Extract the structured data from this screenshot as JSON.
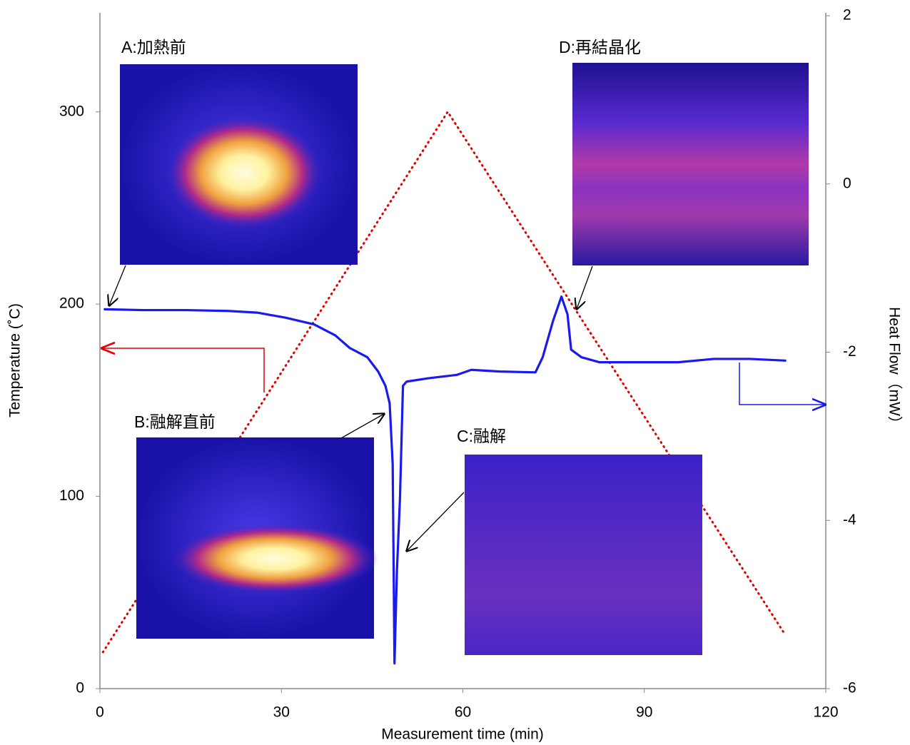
{
  "chart_data": {
    "type": "line",
    "xlabel": "Measurement time (min)",
    "ylabel": "Temperature (˚C)",
    "y2label": "Heat Flow（mW）",
    "xlim": [
      0,
      120
    ],
    "xticks": [
      0,
      30,
      60,
      90,
      120
    ],
    "ylim": [
      0,
      350
    ],
    "yticks": [
      0,
      100,
      200,
      300
    ],
    "y2lim": [
      -6,
      2
    ],
    "y2ticks": [
      -6,
      -4,
      -2,
      0,
      2
    ],
    "grid": false,
    "series": [
      {
        "color": "#e00000",
        "style": "dotted",
        "axis": "y",
        "x": [
          0.5,
          57.5,
          113.3
        ],
        "values": [
          19,
          300,
          28
        ]
      },
      {
        "color": "#1a1aee",
        "style": "solid",
        "axis": "y2",
        "x": [
          0.8,
          7.1,
          14.2,
          21.2,
          26,
          30.7,
          35.4,
          38.9,
          41.3,
          44.2,
          46,
          47.2,
          47.9,
          48.4,
          48.7,
          49.1,
          49.6,
          50.1,
          50.7,
          54.3,
          59,
          61.4,
          66.1,
          72,
          73.2,
          74.9,
          76.3,
          77.3,
          77.9,
          79.6,
          82.6,
          86.1,
          95.6,
          101.5,
          107.4,
          113.3
        ],
        "values": [
          -1.49,
          -1.5,
          -1.5,
          -1.51,
          -1.53,
          -1.59,
          -1.67,
          -1.8,
          -1.95,
          -2.06,
          -2.23,
          -2.4,
          -2.61,
          -3.33,
          -5.7,
          -4.6,
          -3.75,
          -2.4,
          -2.35,
          -2.31,
          -2.27,
          -2.21,
          -2.23,
          -2.24,
          -2.06,
          -1.63,
          -1.34,
          -1.55,
          -1.97,
          -2.06,
          -2.12,
          -2.12,
          -2.12,
          -2.08,
          -2.08,
          -2.1
        ]
      }
    ],
    "annotations": [
      "A:加熱前",
      "B:融解直前",
      "C:融解",
      "D:再結晶化"
    ]
  }
}
